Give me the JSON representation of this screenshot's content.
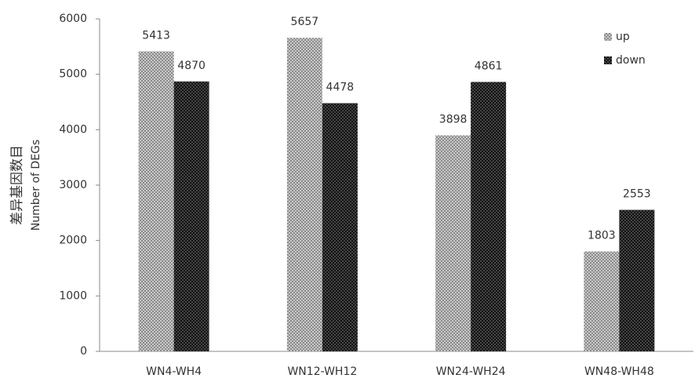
{
  "chart_data": {
    "type": "bar",
    "y_label": [
      "差异基因数目",
      "Number of DEGs"
    ],
    "categories": [
      "WN4-WH4",
      "WN12-WH12",
      "WN24-WH24",
      "WN48-WH48"
    ],
    "series": [
      {
        "name": "up",
        "color": "#8a8a8a",
        "values": [
          5413,
          5657,
          3898,
          1803
        ]
      },
      {
        "name": "down",
        "color": "#111111",
        "values": [
          4870,
          4478,
          4861,
          2553
        ]
      }
    ],
    "ylim": [
      0,
      6000
    ],
    "yticks": [
      0,
      1000,
      2000,
      3000,
      4000,
      5000,
      6000
    ],
    "grid": false,
    "legend": "upper right"
  }
}
